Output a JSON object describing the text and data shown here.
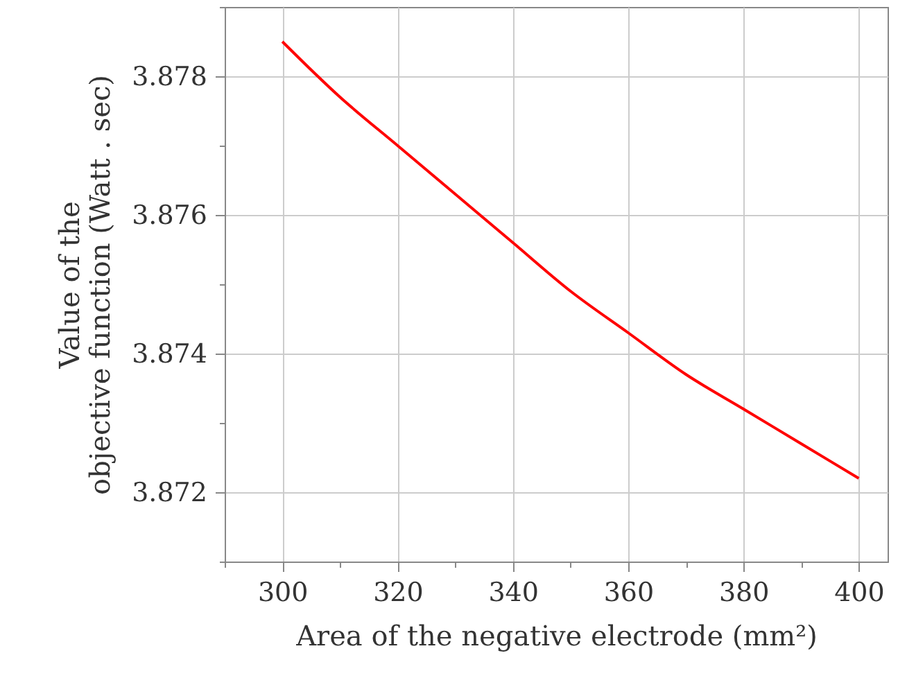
{
  "chart_data": {
    "type": "line",
    "xlabel": "Area of the negative electrode (mm²)",
    "ylabel": "Value of the\nobjective function (Watt . sec)",
    "x": [
      300,
      310,
      320,
      330,
      340,
      350,
      360,
      370,
      380,
      390,
      400
    ],
    "series": [
      {
        "color": "#ff0000",
        "values": [
          3.8785,
          3.8777,
          3.877,
          3.8763,
          3.8756,
          3.8749,
          3.8743,
          3.8737,
          3.8732,
          3.8727,
          3.8722
        ]
      }
    ],
    "xlim": [
      290,
      405
    ],
    "ylim": [
      3.871,
      3.879
    ],
    "xticks": [
      {
        "value": 290,
        "label": null
      },
      300,
      {
        "value": 310,
        "label": null
      },
      320,
      {
        "value": 330,
        "label": null
      },
      340,
      {
        "value": 350,
        "label": null
      },
      360,
      {
        "value": 370,
        "label": null
      },
      380,
      {
        "value": 390,
        "label": null
      },
      400
    ],
    "yticks": [
      {
        "value": 3.871,
        "label": null
      },
      {
        "value": 3.872,
        "label": "3.872"
      },
      {
        "value": 3.873,
        "label": null
      },
      {
        "value": 3.874,
        "label": "3.874"
      },
      {
        "value": 3.875,
        "label": null
      },
      {
        "value": 3.876,
        "label": "3.876"
      },
      {
        "value": 3.877,
        "label": null
      },
      {
        "value": 3.878,
        "label": "3.878"
      },
      {
        "value": 3.879,
        "label": null
      }
    ],
    "grid": true,
    "line_style": "solid",
    "marker": "none"
  }
}
